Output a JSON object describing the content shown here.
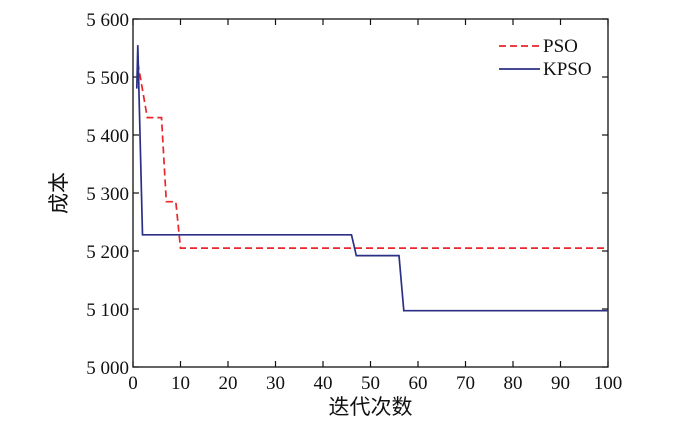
{
  "chart_data": {
    "type": "line",
    "title": "",
    "xlabel": "迭代次数",
    "ylabel": "成本",
    "xlim": [
      0,
      100
    ],
    "ylim": [
      5000,
      5600
    ],
    "xticks": [
      0,
      10,
      20,
      30,
      40,
      50,
      60,
      70,
      80,
      90,
      100
    ],
    "yticks": [
      5000,
      5100,
      5200,
      5300,
      5400,
      5500,
      5600
    ],
    "ytick_labels": [
      "5 000",
      "5 100",
      "5 200",
      "5 300",
      "5 400",
      "5 500",
      "5 600"
    ],
    "grid": false,
    "legend_position": "top-right",
    "series": [
      {
        "name": "PSO",
        "color": "#e8262b",
        "style": "dashed",
        "points": [
          [
            1,
            5525
          ],
          [
            3,
            5430
          ],
          [
            6,
            5430
          ],
          [
            7,
            5285
          ],
          [
            9,
            5285
          ],
          [
            10,
            5205
          ],
          [
            100,
            5205
          ]
        ]
      },
      {
        "name": "KPSO",
        "color": "#2b2f86",
        "style": "solid",
        "points": [
          [
            0.8,
            5480
          ],
          [
            1,
            5555
          ],
          [
            2,
            5228
          ],
          [
            46,
            5228
          ],
          [
            47,
            5192
          ],
          [
            56,
            5192
          ],
          [
            57,
            5097
          ],
          [
            100,
            5097
          ]
        ]
      }
    ]
  }
}
